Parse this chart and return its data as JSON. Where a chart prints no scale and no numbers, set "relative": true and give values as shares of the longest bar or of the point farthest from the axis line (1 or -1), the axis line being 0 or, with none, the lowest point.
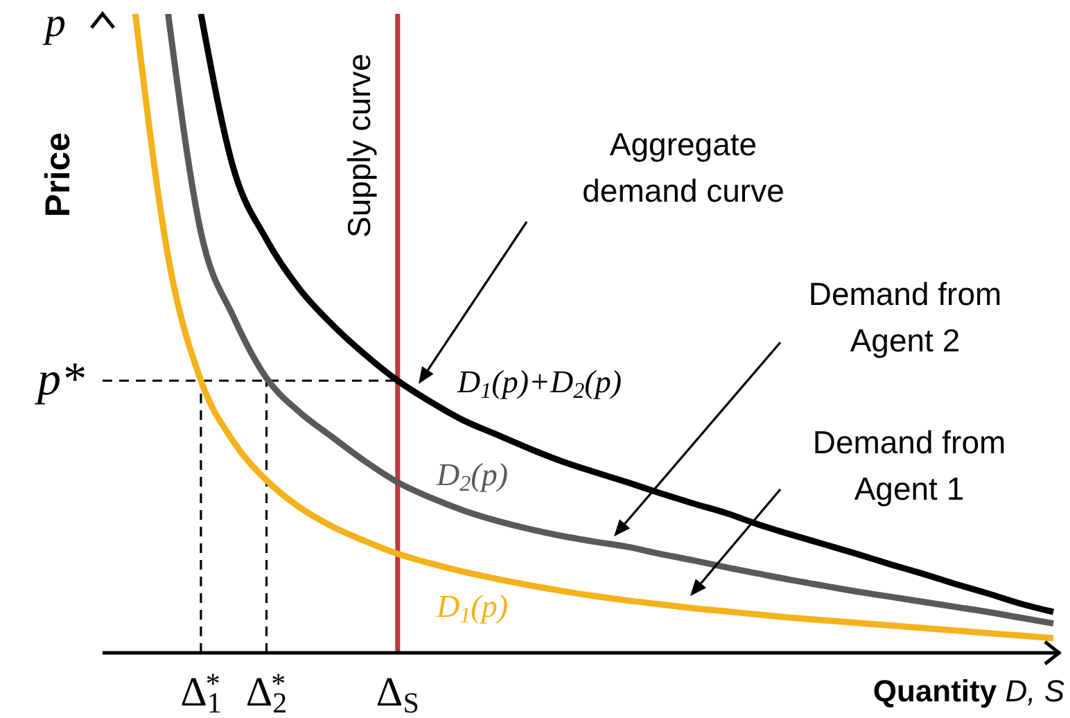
{
  "chart_data": {
    "type": "line",
    "relative": true,
    "marker": "none",
    "ylabel": "Price",
    "xlabel": "Quantity D, S",
    "categories": [
      null,
      null,
      null,
      "Δ$_{1}$$^{*}$",
      null,
      "Δ$_{2}$$^{*}$",
      null,
      null,
      null,
      "Δ$_{S}$",
      null,
      null,
      null,
      null,
      null,
      null,
      null,
      null,
      null,
      null,
      null,
      null,
      null,
      null,
      null,
      null,
      null,
      null,
      null,
      null
    ],
    "series": [
      {
        "name": "D$_{1}$(p)+D$_{2}$(p)",
        "color": "#000000",
        "values": [
          null,
          null,
          null,
          1.0,
          0.757,
          0.647,
          0.57,
          0.514,
          0.467,
          0.426,
          0.393,
          0.364,
          0.342,
          0.32,
          0.3,
          0.283,
          0.267,
          0.25,
          0.234,
          0.219,
          0.201,
          0.185,
          0.17,
          0.155,
          0.139,
          0.124,
          0.108,
          0.093,
          0.077,
          0.064
        ]
      },
      {
        "name": "D$_{2}$(p)",
        "color": "#595959",
        "values": [
          null,
          null,
          1.0,
          0.658,
          0.525,
          0.43,
          0.377,
          0.338,
          0.3,
          0.267,
          0.243,
          0.223,
          0.207,
          0.194,
          0.183,
          0.174,
          0.166,
          0.155,
          0.145,
          0.134,
          0.124,
          0.114,
          0.105,
          0.096,
          0.088,
          0.08,
          0.072,
          0.064,
          0.055,
          0.046
        ]
      },
      {
        "name": "D$_{1}$(p)",
        "color": "#f4b21b",
        "values": [
          null,
          1.0,
          0.62,
          0.426,
          0.33,
          0.27,
          0.228,
          0.198,
          0.175,
          0.155,
          0.14,
          0.127,
          0.116,
          0.106,
          0.097,
          0.089,
          0.082,
          0.076,
          0.07,
          0.065,
          0.06,
          0.055,
          0.051,
          0.047,
          0.043,
          0.039,
          0.035,
          0.031,
          0.027,
          0.023
        ]
      }
    ],
    "ref_lines": [
      {
        "axis": "x",
        "value": "Δ$_{S}$",
        "label": "Supply curve",
        "color": "#c0393b",
        "line_style": "solid"
      },
      {
        "axis": "y",
        "value": 0.426,
        "label": "p*",
        "color": "#000000",
        "line_style": "dashed"
      },
      {
        "axis": "x",
        "value": "Δ$_{1}$$^{*}$",
        "label": null,
        "color": "#000000",
        "line_style": "dashed"
      },
      {
        "axis": "x",
        "value": "Δ$_{2}$$^{*}$",
        "label": null,
        "color": "#000000",
        "line_style": "dashed"
      }
    ],
    "annotations": [
      "p",
      "Aggregate\ndemand curve",
      "Demand from\nAgent 2",
      "Demand from\nAgent 1"
    ]
  }
}
